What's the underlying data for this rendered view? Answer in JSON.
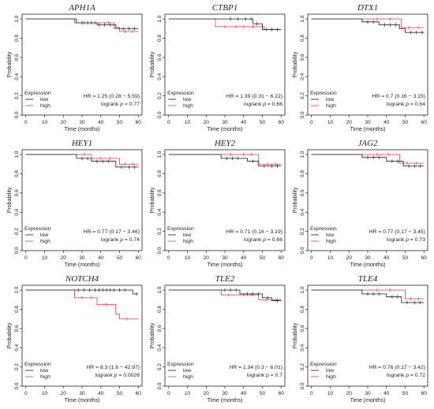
{
  "figure": {
    "common": {
      "xlabel": "Time (months)",
      "ylabel": "Probability",
      "xlim": [
        -2,
        62
      ],
      "ylim": [
        0,
        1.05
      ],
      "xticks": [
        0,
        10,
        20,
        30,
        40,
        50,
        60
      ],
      "yticks": [
        0.0,
        0.2,
        0.4,
        0.6,
        0.8,
        1.0
      ],
      "legend_title": "Expression",
      "series_names": [
        "low",
        "high"
      ],
      "colors": {
        "low": "#333333",
        "high": "#e8505b"
      }
    }
  },
  "chart_data": [
    {
      "type": "line",
      "title": "APH1A",
      "legend_position": "bottom-left",
      "hr_text": "HR = 1.25 (0.28 − 5.59)",
      "logrank_label": "logrank",
      "p_label": "p",
      "p_value": "= 0.77",
      "series": [
        {
          "name": "low",
          "x": [
            0,
            27,
            27,
            38,
            38,
            48,
            48,
            50,
            50,
            60
          ],
          "y": [
            1.0,
            1.0,
            0.96,
            0.96,
            0.94,
            0.94,
            0.91,
            0.91,
            0.9,
            0.9
          ],
          "censor_x": [
            30,
            33,
            35,
            39,
            42,
            45,
            52,
            55,
            58
          ]
        },
        {
          "name": "high",
          "x": [
            0,
            26,
            26,
            47,
            47,
            50,
            50,
            60
          ],
          "y": [
            1.0,
            1.0,
            0.96,
            0.96,
            0.9,
            0.9,
            0.87,
            0.87
          ],
          "censor_x": [
            31,
            37,
            44,
            53,
            57
          ]
        }
      ]
    },
    {
      "type": "line",
      "title": "CTBP1",
      "legend_position": "bottom-left",
      "hr_text": "HR = 1.39 (0.31 − 6.22)",
      "logrank_label": "logrank",
      "p_label": "p",
      "p_value": "= 0.66",
      "series": [
        {
          "name": "low",
          "x": [
            0,
            45,
            45,
            50,
            50,
            60
          ],
          "y": [
            1.0,
            1.0,
            0.95,
            0.95,
            0.89,
            0.89
          ],
          "censor_x": [
            33,
            37,
            41,
            44,
            47,
            52,
            55,
            58
          ]
        },
        {
          "name": "high",
          "x": [
            0,
            25,
            25,
            51,
            51,
            60
          ],
          "y": [
            1.0,
            1.0,
            0.92,
            0.92,
            0.89,
            0.89
          ],
          "censor_x": [
            30,
            36,
            40,
            45,
            55
          ]
        }
      ]
    },
    {
      "type": "line",
      "title": "DTX1",
      "legend_position": "bottom-left",
      "hr_text": "HR = 0.7 (0.16 − 3.15)",
      "logrank_label": "logrank",
      "p_label": "p",
      "p_value": "= 0.64",
      "series": [
        {
          "name": "low",
          "x": [
            0,
            27,
            27,
            36,
            36,
            47,
            47,
            50,
            50,
            60
          ],
          "y": [
            1.0,
            1.0,
            0.97,
            0.97,
            0.94,
            0.94,
            0.9,
            0.9,
            0.86,
            0.86
          ],
          "censor_x": [
            30,
            33,
            39,
            42,
            45,
            53,
            56,
            59
          ]
        },
        {
          "name": "high",
          "x": [
            0,
            48,
            48,
            60
          ],
          "y": [
            1.0,
            1.0,
            0.91,
            0.91
          ],
          "censor_x": [
            35,
            42,
            52,
            57
          ]
        }
      ]
    },
    {
      "type": "line",
      "title": "HEY1",
      "legend_position": "bottom-left",
      "hr_text": "HR = 0.77 (0.17 − 3.46)",
      "logrank_label": "logrank",
      "p_label": "p",
      "p_value": "= 0.74",
      "series": [
        {
          "name": "low",
          "x": [
            0,
            27,
            27,
            35,
            35,
            48,
            48,
            60
          ],
          "y": [
            1.0,
            1.0,
            0.96,
            0.96,
            0.93,
            0.93,
            0.87,
            0.87
          ],
          "censor_x": [
            30,
            33,
            38,
            41,
            44,
            51,
            55,
            58
          ]
        },
        {
          "name": "high",
          "x": [
            0,
            35,
            35,
            50,
            50,
            60
          ],
          "y": [
            1.0,
            1.0,
            0.96,
            0.96,
            0.9,
            0.9
          ],
          "censor_x": [
            31,
            40,
            45,
            53,
            57
          ]
        }
      ]
    },
    {
      "type": "line",
      "title": "HEY2",
      "legend_position": "bottom-left",
      "hr_text": "HR = 0.71 (0.16 − 3.19)",
      "logrank_label": "logrank",
      "p_label": "p",
      "p_value": "= 0.66",
      "series": [
        {
          "name": "low",
          "x": [
            0,
            28,
            28,
            42,
            42,
            48,
            48,
            60
          ],
          "y": [
            1.0,
            1.0,
            0.96,
            0.96,
            0.93,
            0.93,
            0.88,
            0.88
          ],
          "censor_x": [
            31,
            34,
            37,
            45,
            51,
            55,
            58
          ]
        },
        {
          "name": "high",
          "x": [
            0,
            48,
            48,
            60
          ],
          "y": [
            1.0,
            1.0,
            0.9,
            0.9
          ],
          "censor_x": [
            33,
            40,
            44,
            53,
            57
          ]
        }
      ]
    },
    {
      "type": "line",
      "title": "JAG2",
      "legend_position": "bottom-left",
      "hr_text": "HR = 0.77 (0.17 − 3.45)",
      "logrank_label": "logrank",
      "p_label": "p",
      "p_value": "= 0.73",
      "series": [
        {
          "name": "low",
          "x": [
            0,
            27,
            27,
            40,
            40,
            49,
            49,
            60
          ],
          "y": [
            1.0,
            1.0,
            0.97,
            0.97,
            0.93,
            0.93,
            0.88,
            0.88
          ],
          "censor_x": [
            30,
            33,
            36,
            43,
            46,
            52,
            55,
            58
          ]
        },
        {
          "name": "high",
          "x": [
            0,
            47,
            47,
            60
          ],
          "y": [
            1.0,
            1.0,
            0.91,
            0.91
          ],
          "censor_x": [
            35,
            41,
            51,
            56
          ]
        }
      ]
    },
    {
      "type": "line",
      "title": "NOTCH4",
      "legend_position": "bottom-left",
      "hr_text": "HR = 8.3 (1.6 − 42.97)",
      "logrank_label": "logrank",
      "p_label": "p",
      "p_value": "= 0.0026",
      "series": [
        {
          "name": "low",
          "x": [
            0,
            57,
            57,
            60
          ],
          "y": [
            1.0,
            1.0,
            0.96,
            0.96
          ],
          "censor_x": [
            28,
            31,
            34,
            37,
            39,
            41,
            43,
            45,
            47,
            50,
            53,
            59
          ]
        },
        {
          "name": "high",
          "x": [
            0,
            26,
            26,
            38,
            38,
            48,
            48,
            50,
            50,
            60
          ],
          "y": [
            1.0,
            1.0,
            0.92,
            0.92,
            0.85,
            0.85,
            0.75,
            0.75,
            0.7,
            0.7
          ],
          "censor_x": [
            30,
            35,
            43,
            54
          ]
        }
      ]
    },
    {
      "type": "line",
      "title": "TLE2",
      "legend_position": "bottom-left",
      "hr_text": "HR = 1.34 (0.3 − 6.01)",
      "logrank_label": "logrank",
      "p_label": "p",
      "p_value": "= 0.7",
      "series": [
        {
          "name": "low",
          "x": [
            0,
            38,
            38,
            50,
            50,
            55,
            55,
            60
          ],
          "y": [
            1.0,
            1.0,
            0.96,
            0.96,
            0.92,
            0.92,
            0.89,
            0.89
          ],
          "censor_x": [
            30,
            33,
            36,
            42,
            45,
            48,
            53,
            58
          ]
        },
        {
          "name": "high",
          "x": [
            0,
            28,
            28,
            48,
            48,
            60
          ],
          "y": [
            1.0,
            1.0,
            0.95,
            0.95,
            0.9,
            0.9
          ],
          "censor_x": [
            32,
            40,
            44,
            52,
            57
          ]
        }
      ]
    },
    {
      "type": "line",
      "title": "TLE4",
      "legend_position": "bottom-left",
      "hr_text": "HR = 0.76 (0.17 − 3.42)",
      "logrank_label": "logrank",
      "p_label": "p",
      "p_value": "= 0.72",
      "series": [
        {
          "name": "low",
          "x": [
            0,
            27,
            27,
            40,
            40,
            48,
            48,
            60
          ],
          "y": [
            1.0,
            1.0,
            0.96,
            0.96,
            0.93,
            0.93,
            0.87,
            0.87
          ],
          "censor_x": [
            30,
            33,
            36,
            43,
            46,
            51,
            55,
            58
          ]
        },
        {
          "name": "high",
          "x": [
            0,
            50,
            50,
            60
          ],
          "y": [
            1.0,
            1.0,
            0.91,
            0.91
          ],
          "censor_x": [
            35,
            42,
            53,
            57
          ]
        }
      ]
    }
  ]
}
